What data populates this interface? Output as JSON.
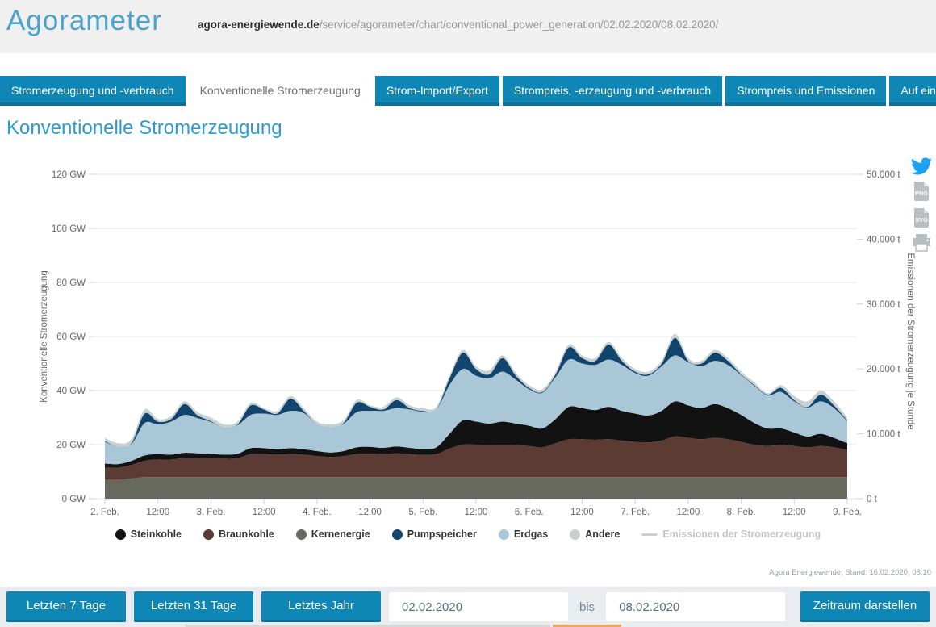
{
  "theme": {
    "accent_blue": "#0e86b6",
    "accent_blue_dark": "#0b6e94",
    "title_blue": "#4ba2cc",
    "heading_blue": "#2b9cd3",
    "header_band_bg": "#f0f0f0",
    "controls_bar_bg": "#e9edf0",
    "twitter_blue": "#1da1f2",
    "icon_gray": "#b9bec1",
    "grid_gray": "#e6e6e6",
    "tick_blue_gray": "#c3d6e2"
  },
  "header": {
    "title": "Agorameter",
    "url_domain": "agora-energiewende.de",
    "url_path": "/service/agorameter/chart/conventional_power_generation/02.02.2020/08.02.2020/"
  },
  "tabs": [
    {
      "label": "Stromerzeugung und -verbrauch",
      "active": false
    },
    {
      "label": "Konventionelle Stromerzeugung",
      "active": true
    },
    {
      "label": "Strom-Import/Export",
      "active": false
    },
    {
      "label": "Strompreis, -erzeugung und -verbrauch",
      "active": false
    },
    {
      "label": "Strompreis und Emissionen",
      "active": false
    },
    {
      "label": "Auf einen Blick",
      "active": false
    }
  ],
  "page": {
    "heading": "Konventionelle Stromerzeugung"
  },
  "share": {
    "png_label": "PNG",
    "svg_label": "SVG"
  },
  "chart_data": {
    "type": "area",
    "subtype": "stacked-area",
    "title": "Konventionelle Stromerzeugung",
    "x_start": "02.02.2020 00:00",
    "x_end": "09.02.2020 00:00",
    "interval_hours": 3,
    "x_ticks": [
      "2. Feb.",
      "12:00",
      "3. Feb.",
      "12:00",
      "4. Feb.",
      "12:00",
      "5. Feb.",
      "12:00",
      "6. Feb.",
      "12:00",
      "7. Feb.",
      "12:00",
      "8. Feb.",
      "12:00",
      "9. Feb."
    ],
    "y_left": {
      "label": "Konventionelle Stromerzeugung",
      "unit": "GW",
      "max": 120,
      "ticks": [
        "0 GW",
        "20 GW",
        "40 GW",
        "60 GW",
        "80 GW",
        "100 GW",
        "120 GW"
      ]
    },
    "y_right": {
      "label": "Emissionen der Stromerzeugung je Stunde",
      "unit": "t",
      "max": 50000,
      "ticks": [
        "0 t",
        "10.000 t",
        "20.000 t",
        "30.000 t",
        "40.000 t",
        "50.000 t"
      ]
    },
    "grid": true,
    "legend_position": "bottom",
    "series": [
      {
        "name": "Kernenergie",
        "color": "#67695f",
        "values": [
          7,
          7,
          7.5,
          8,
          8,
          8,
          8,
          8,
          8,
          8,
          8,
          8,
          8,
          8,
          8,
          8,
          8,
          8,
          8,
          8,
          8,
          8,
          8,
          8,
          8,
          8,
          8,
          8,
          8,
          8,
          8,
          8,
          8,
          8,
          8,
          8,
          8,
          8,
          8,
          8,
          8,
          8,
          8,
          8,
          8,
          8,
          8,
          8,
          8,
          8,
          8,
          8,
          8,
          8,
          8,
          8,
          8
        ]
      },
      {
        "name": "Braunkohle",
        "color": "#5c3b35",
        "values": [
          4.5,
          4.5,
          5,
          6,
          6.5,
          6.5,
          7,
          7,
          7,
          6.8,
          7,
          8.5,
          8.5,
          8.3,
          8.5,
          8.3,
          7.8,
          7.5,
          7.8,
          8.5,
          8.7,
          8.5,
          8.8,
          8.5,
          8.2,
          8.5,
          10.5,
          12,
          12,
          11.8,
          12,
          11.8,
          11.5,
          11,
          12.5,
          14,
          14,
          13.8,
          14,
          13.5,
          13,
          12.8,
          13.5,
          15,
          14.5,
          14,
          14.5,
          14,
          13,
          12,
          11.5,
          12,
          11.5,
          11,
          11.5,
          11,
          10
        ]
      },
      {
        "name": "Steinkohle",
        "color": "#121212",
        "values": [
          1.5,
          1.3,
          1.5,
          2,
          2,
          1.8,
          2,
          1.8,
          1.6,
          1.5,
          1.6,
          2.2,
          2.2,
          2,
          2.2,
          2,
          1.8,
          1.6,
          1.8,
          2.5,
          2.5,
          2.3,
          2.5,
          2.3,
          2.2,
          2.5,
          5.5,
          9,
          8.5,
          8,
          8.5,
          8,
          7.5,
          7,
          9,
          12,
          11.5,
          11,
          12,
          11,
          10.5,
          10,
          11,
          13,
          12,
          11.5,
          12.5,
          11.5,
          10,
          8,
          6.5,
          6,
          5,
          4,
          4.5,
          3.5,
          2.5
        ]
      },
      {
        "name": "Erdgas",
        "color": "#aac7d8",
        "values": [
          8,
          6.5,
          6.2,
          12,
          11,
          12.2,
          14,
          13,
          11.8,
          10,
          10.6,
          12.3,
          12.8,
          12.7,
          13.8,
          13.4,
          9.9,
          9.4,
          10.1,
          13,
          13.3,
          13.7,
          14.2,
          14.2,
          13.8,
          14,
          18,
          19,
          17,
          16.7,
          18.5,
          16.2,
          13.5,
          13.2,
          15.5,
          17.5,
          16.5,
          16.7,
          17.5,
          17,
          15,
          14.7,
          16.5,
          17,
          16,
          15.5,
          16,
          16,
          14.7,
          13.7,
          12.2,
          13.5,
          11.5,
          10.7,
          12,
          11,
          8.2
        ]
      },
      {
        "name": "Pumpspeicher",
        "color": "#12456e",
        "values": [
          0.3,
          0,
          0.3,
          3.5,
          1,
          1,
          4,
          1,
          0.3,
          0,
          0.3,
          3.5,
          1.5,
          0.5,
          4.5,
          0.8,
          0,
          0,
          0.3,
          3.5,
          1.5,
          0.5,
          3,
          0.5,
          0.3,
          0,
          2.5,
          6,
          2.5,
          1.5,
          5,
          1.5,
          0.5,
          0.3,
          1,
          4.5,
          2,
          1.5,
          5.5,
          1.5,
          0.5,
          0.5,
          1,
          6.5,
          0.5,
          1,
          3,
          1.5,
          0.3,
          0.3,
          0.3,
          1.5,
          0.5,
          0.3,
          2.5,
          1,
          0.3
        ]
      },
      {
        "name": "Andere",
        "color": "#c9d1d0",
        "values": [
          1.2,
          1.2,
          1.5,
          1.5,
          1,
          1,
          1,
          1.2,
          1.3,
          1.2,
          1,
          1,
          0.5,
          1,
          1,
          1,
          1,
          1,
          1,
          1,
          0.5,
          1,
          1,
          1,
          1,
          1,
          1,
          1,
          1,
          1.5,
          1,
          1,
          1,
          1,
          1,
          1,
          1,
          1,
          1,
          1,
          1,
          1,
          1,
          1.5,
          1,
          1,
          1,
          1,
          1,
          1,
          0.5,
          1,
          1.5,
          2,
          1.5,
          1.5,
          1
        ]
      }
    ],
    "legend": [
      {
        "label": "Steinkohle",
        "color": "#121212",
        "marker": "circle",
        "enabled": true
      },
      {
        "label": "Braunkohle",
        "color": "#5c3b35",
        "marker": "circle",
        "enabled": true
      },
      {
        "label": "Kernenergie",
        "color": "#67695f",
        "marker": "circle",
        "enabled": true
      },
      {
        "label": "Pumpspeicher",
        "color": "#12456e",
        "marker": "circle",
        "enabled": true
      },
      {
        "label": "Erdgas",
        "color": "#aac7d8",
        "marker": "circle",
        "enabled": true
      },
      {
        "label": "Andere",
        "color": "#c9d1d0",
        "marker": "circle",
        "enabled": true
      },
      {
        "label": "Emissionen der Stromerzeugung",
        "color": "#cfcfcf",
        "marker": "line",
        "enabled": false
      }
    ]
  },
  "footer": {
    "source": "Agora Energiewende; Stand: 16.02.2020, 08:10"
  },
  "controls": {
    "last7": "Letzten 7 Tage",
    "last31": "Letzten 31 Tage",
    "lastyear": "Letztes Jahr",
    "from_value": "02.02.2020",
    "bis_label": "bis",
    "to_value": "08.02.2020",
    "submit": "Zeitraum darstellen"
  }
}
